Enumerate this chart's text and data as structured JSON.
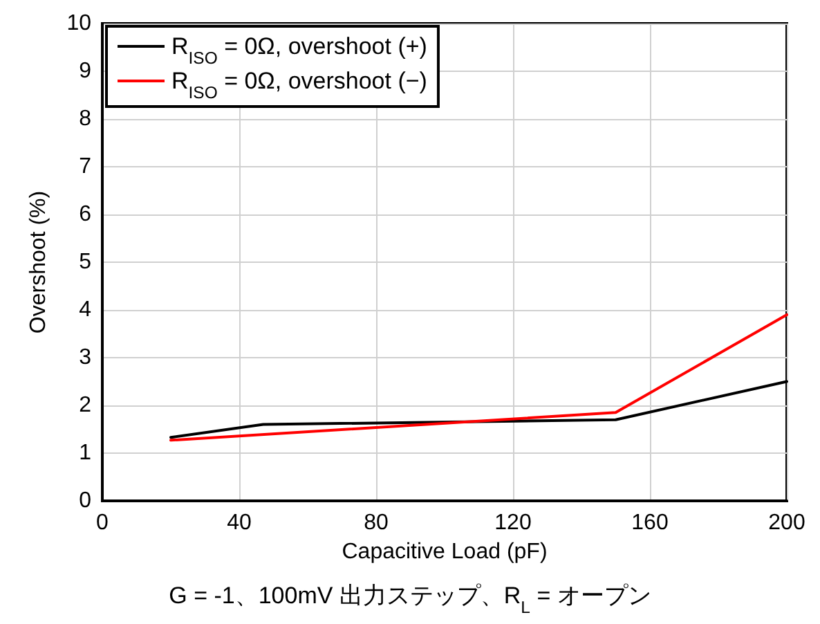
{
  "chart_data": {
    "type": "line",
    "xlabel": "Capacitive Load (pF)",
    "ylabel": "Overshoot (%)",
    "xlim": [
      0,
      200
    ],
    "xticks": [
      0,
      40,
      80,
      120,
      160,
      200
    ],
    "ylim": [
      0,
      10
    ],
    "yticks": [
      0,
      1,
      2,
      3,
      4,
      5,
      6,
      7,
      8,
      9,
      10
    ],
    "grid": true,
    "legend": "top left",
    "marker": "none",
    "line_style": "solid",
    "series": [
      {
        "name": "R$_{ISO}$ = 0Ω, overshoot (+)",
        "color": "#000000",
        "x": [
          20,
          47,
          150,
          200
        ],
        "values": [
          1.33,
          1.6,
          1.7,
          2.5
        ]
      },
      {
        "name": "R$_{ISO}$ = 0Ω, overshoot (−)",
        "color": "#ff0000",
        "x": [
          20,
          150,
          200
        ],
        "values": [
          1.27,
          1.85,
          3.9
        ]
      }
    ],
    "annotations": [
      "G = -1、100mV 出力ステップ、R$_{L}$ = オープン"
    ]
  }
}
